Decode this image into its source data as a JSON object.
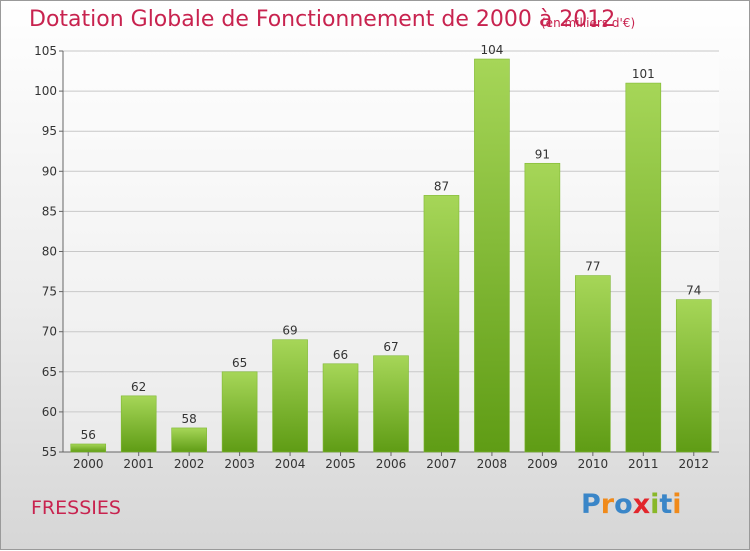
{
  "header": {
    "title": "Dotation Globale de Fonctionnement de 2000 à 2012",
    "subtitle": "(en milliers d'€)"
  },
  "footer": {
    "commune": "FRESSIES",
    "logo_text": "Proxiti",
    "logo_colors": [
      "#3a86c8",
      "#f08a1a",
      "#3a86c8",
      "#e2262c",
      "#89b829",
      "#3a86c8",
      "#f08a1a"
    ]
  },
  "colors": {
    "title": "#c8234f",
    "bar_top": "#a6d658",
    "bar_bottom": "#5f9c15",
    "grid": "#c8c8c8",
    "axis": "#666666"
  },
  "chart_data": {
    "type": "bar",
    "title": "Dotation Globale de Fonctionnement de 2000 à 2012",
    "subtitle": "(en milliers d'€)",
    "categories": [
      "2000",
      "2001",
      "2002",
      "2003",
      "2004",
      "2005",
      "2006",
      "2007",
      "2008",
      "2009",
      "2010",
      "2011",
      "2012"
    ],
    "values": [
      56,
      62,
      58,
      65,
      69,
      66,
      67,
      87,
      104,
      91,
      77,
      101,
      74
    ],
    "ylim": [
      55,
      105
    ],
    "yticks": [
      55,
      60,
      65,
      70,
      75,
      80,
      85,
      90,
      95,
      100,
      105
    ],
    "grid": true,
    "xlabel": "",
    "ylabel": ""
  }
}
